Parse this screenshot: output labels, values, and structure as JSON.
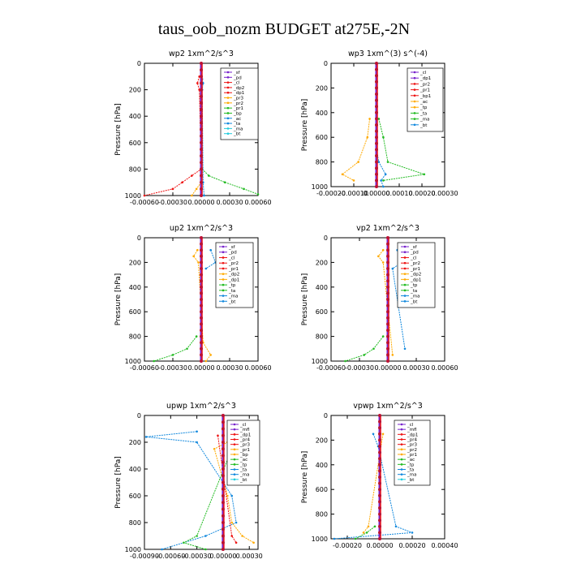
{
  "figure_title": "taus_oob_nozm  BUDGET at275E,-2N",
  "ylabel": "Pressure [hPa]",
  "y_ticks": [
    "0",
    "200",
    "400",
    "600",
    "800",
    "1000"
  ],
  "chart_data": [
    {
      "type": "line",
      "title": "wp2   1xm^2/s^3",
      "xlim": [
        -0.0006,
        0.0006
      ],
      "ylim": [
        1000,
        0
      ],
      "x_ticks": [
        "-0.00060",
        "-0.00030",
        "0.00000",
        "0.00030",
        "0.00060"
      ],
      "legend_labels": [
        "_sf",
        "_pd",
        "_cl",
        "_dp2",
        "_dp1",
        "_pr3",
        "_pr2",
        "_pr1",
        "_bp",
        "_ac",
        "_ta",
        "_ma",
        "_bt"
      ],
      "series": [
        {
          "name": "_cl",
          "color": "#ee1111",
          "p": [
            100,
            150,
            200,
            800,
            850,
            900,
            950,
            1000
          ],
          "v": [
            -2e-05,
            -4e-05,
            -2e-05,
            0,
            -0.0001,
            -0.0002,
            -0.0003,
            -0.0006
          ]
        },
        {
          "name": "_pr1",
          "color": "#22bb22",
          "p": [
            800,
            850,
            900,
            950,
            990
          ],
          "v": [
            1e-05,
            8e-05,
            0.00025,
            0.00045,
            0.0006
          ]
        },
        {
          "name": "_dp1",
          "color": "#ffaa00",
          "p": [
            900,
            950,
            1000
          ],
          "v": [
            0,
            -5e-05,
            -0.0001
          ]
        },
        {
          "name": "_ac",
          "color": "#1188dd",
          "p": [
            120,
            150,
            200,
            900,
            1000
          ],
          "v": [
            1e-05,
            2e-05,
            1e-05,
            2e-05,
            3e-05
          ]
        },
        {
          "name": "_pd",
          "color": "#7722cc",
          "p": [
            0,
            250,
            500,
            750,
            1000
          ],
          "v": [
            0,
            0,
            0,
            0,
            0
          ]
        }
      ]
    },
    {
      "type": "line",
      "title": "wp3   1xm^(3) s^(-4)",
      "xlim": [
        -0.0002,
        0.0003
      ],
      "ylim": [
        1000,
        0
      ],
      "x_ticks": [
        "-0.00020",
        "-0.00010",
        "0.00000",
        "0.00010",
        "0.00020",
        "0.00030"
      ],
      "legend_labels": [
        "_cl",
        "_dp1",
        "_pr2",
        "_pr1",
        "_bp1",
        "_ac",
        "_tp",
        "_ta",
        "_ma",
        "_bt"
      ],
      "series": [
        {
          "name": "_pr2",
          "color": "#ffaa00",
          "p": [
            450,
            600,
            800,
            900,
            950
          ],
          "v": [
            -3e-05,
            -4e-05,
            -8e-05,
            -0.00015,
            -0.0001
          ]
        },
        {
          "name": "_pr1",
          "color": "#22bb22",
          "p": [
            450,
            600,
            800,
            900,
            950
          ],
          "v": [
            1e-05,
            3e-05,
            5e-05,
            0.00021,
            3e-05
          ]
        },
        {
          "name": "_ac",
          "color": "#1188dd",
          "p": [
            700,
            800,
            900,
            950,
            1000
          ],
          "v": [
            0,
            1e-05,
            4e-05,
            2e-05,
            3e-05
          ]
        },
        {
          "name": "_dp1",
          "color": "#ee1111",
          "p": [
            0,
            500,
            1000
          ],
          "v": [
            0,
            0,
            0
          ]
        }
      ]
    },
    {
      "type": "line",
      "title": "up2   1xm^2/s^3",
      "xlim": [
        -0.0006,
        0.0006
      ],
      "ylim": [
        1000,
        0
      ],
      "x_ticks": [
        "-0.00060",
        "-0.00030",
        "0.00000",
        "0.00030",
        "0.00060"
      ],
      "legend_labels": [
        "_sf",
        "_pd",
        "_cl",
        "_pr2",
        "_pr1",
        "_dp2",
        "_dp1",
        "_tp",
        "_ta",
        "_ma",
        "_bt"
      ],
      "series": [
        {
          "name": "_dp2",
          "color": "#22bb22",
          "p": [
            800,
            900,
            950,
            1000
          ],
          "v": [
            -5e-05,
            -0.00015,
            -0.0003,
            -0.0005
          ]
        },
        {
          "name": "_pr1",
          "color": "#ffaa00",
          "p": [
            100,
            150,
            200,
            850,
            950,
            1000
          ],
          "v": [
            -4e-05,
            -8e-05,
            -3e-05,
            2e-05,
            0.0001,
            5e-05
          ]
        },
        {
          "name": "_tp",
          "color": "#1188dd",
          "p": [
            100,
            200,
            250
          ],
          "v": [
            0.0001,
            0.00015,
            5e-05
          ]
        },
        {
          "name": "_cl",
          "color": "#ee1111",
          "p": [
            0,
            500,
            1000
          ],
          "v": [
            0,
            0,
            0
          ]
        }
      ]
    },
    {
      "type": "line",
      "title": "vp2   1xm^2/s^3",
      "xlim": [
        -0.0006,
        0.0006
      ],
      "ylim": [
        1000,
        0
      ],
      "x_ticks": [
        "-0.00060",
        "-0.00030",
        "0.00000",
        "0.00030",
        "0.00060"
      ],
      "legend_labels": [
        "_sf",
        "_pd",
        "_cl",
        "_pr2",
        "_pr1",
        "_dp2",
        "_dp1",
        "_tp",
        "_ta",
        "_ma",
        "_bt"
      ],
      "series": [
        {
          "name": "_dp2",
          "color": "#22bb22",
          "p": [
            800,
            900,
            950,
            1000
          ],
          "v": [
            -5e-05,
            -0.00015,
            -0.00025,
            -0.00045
          ]
        },
        {
          "name": "_pr1",
          "color": "#ffaa00",
          "p": [
            100,
            150,
            200,
            950
          ],
          "v": [
            -5e-05,
            -0.0001,
            -5e-05,
            5e-05
          ]
        },
        {
          "name": "_tp",
          "color": "#1188dd",
          "p": [
            100,
            200,
            250,
            900
          ],
          "v": [
            0.0001,
            0.00015,
            5e-05,
            0.00018
          ]
        },
        {
          "name": "_cl",
          "color": "#ee1111",
          "p": [
            0,
            500,
            1000
          ],
          "v": [
            0,
            0,
            0
          ]
        }
      ]
    },
    {
      "type": "line",
      "title": "upwp   1xm^2/s^3",
      "xlim": [
        -0.0009,
        0.0004
      ],
      "ylim": [
        1000,
        0
      ],
      "x_ticks": [
        "-0.00090",
        "-0.00060",
        "-0.00030",
        "0.00000",
        "0.00030"
      ],
      "legend_labels": [
        "_cl",
        "_mfl",
        "_dp1",
        "_pr4",
        "_pr3",
        "_pr1",
        "_bp",
        "_ac",
        "_tp",
        "_ta",
        "_ma",
        "_bt"
      ],
      "series": [
        {
          "name": "_ac",
          "color": "#1188dd",
          "p": [
            120,
            160,
            200,
            600,
            800,
            900,
            1000
          ],
          "v": [
            -0.0003,
            -0.00088,
            -0.0003,
            0.0001,
            0.00015,
            -0.0002,
            -0.0007
          ]
        },
        {
          "name": "_pr3",
          "color": "#ffaa00",
          "p": [
            120,
            160,
            200,
            250,
            600,
            800,
            900,
            950
          ],
          "v": [
            0.0002,
            0.00025,
            5e-05,
            -0.0001,
            5e-05,
            0.0001,
            0.00022,
            0.00035
          ]
        },
        {
          "name": "_bp",
          "color": "#22bb22",
          "p": [
            150,
            250,
            900,
            950,
            1000
          ],
          "v": [
            0.00015,
            0.0001,
            -0.0003,
            -0.00045,
            -0.0002
          ]
        },
        {
          "name": "_dp1",
          "color": "#ee1111",
          "p": [
            150,
            900,
            950
          ],
          "v": [
            -6e-05,
            0.0001,
            0.00015
          ]
        },
        {
          "name": "_cl",
          "color": "#7722cc",
          "p": [
            0,
            500,
            1000
          ],
          "v": [
            0,
            0,
            0
          ]
        }
      ]
    },
    {
      "type": "line",
      "title": "vpwp   1xm^2/s^3",
      "xlim": [
        -0.0003,
        0.0004
      ],
      "ylim": [
        1000,
        0
      ],
      "x_ticks": [
        "-0.00020",
        "0.00000",
        "0.00020",
        "0.00040"
      ],
      "legend_labels": [
        "_cl",
        "_mfl",
        "_dp1",
        "_pr4",
        "_pr3",
        "_pr2",
        "_pr1",
        "_ac",
        "_tp",
        "_ta",
        "_ma",
        "_bt"
      ],
      "series": [
        {
          "name": "_tp",
          "color": "#1188dd",
          "p": [
            150,
            250,
            900,
            950,
            1000
          ],
          "v": [
            -4e-05,
            -1e-05,
            0.0001,
            0.0002,
            -0.00028
          ]
        },
        {
          "name": "_pr3",
          "color": "#ffaa00",
          "p": [
            150,
            900,
            950
          ],
          "v": [
            2e-05,
            -7e-05,
            -0.0001
          ]
        },
        {
          "name": "_bp",
          "color": "#22bb22",
          "p": [
            900,
            950,
            1000
          ],
          "v": [
            -3e-05,
            -8e-05,
            -0.00015
          ]
        },
        {
          "name": "_dp1",
          "color": "#ee1111",
          "p": [
            0,
            500,
            1000
          ],
          "v": [
            0,
            0,
            0
          ]
        }
      ]
    }
  ]
}
